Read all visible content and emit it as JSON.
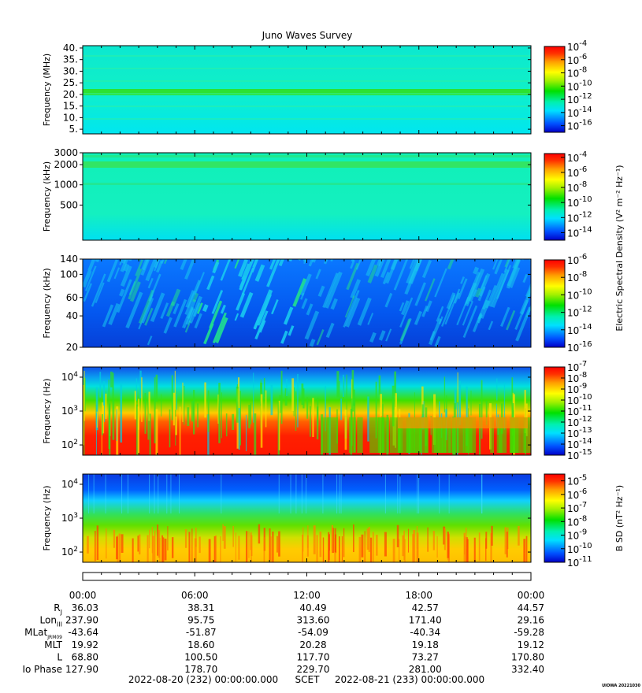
{
  "title": "Juno Waves Survey",
  "footer": {
    "start": "2022-08-20 (232) 00:00:00.000",
    "scet": "SCET",
    "end": "2022-08-21 (233) 00:00:00.000",
    "credit": "UIOWA 20221030"
  },
  "colorbar_labels": {
    "e_density": "Electric Spectral Density (V² m⁻² Hz⁻¹)",
    "b_density": "B SD (nT² Hz⁻¹)"
  },
  "ephemeris": {
    "times": [
      "00:00",
      "06:00",
      "12:00",
      "18:00",
      "00:00"
    ],
    "rows": [
      {
        "label": "R",
        "sub": "J",
        "values": [
          "36.03",
          "38.31",
          "40.49",
          "42.57",
          "44.57"
        ]
      },
      {
        "label": "Lon",
        "sub": "III",
        "values": [
          "237.90",
          "95.75",
          "313.60",
          "171.40",
          "29.16"
        ]
      },
      {
        "label": "MLat",
        "sub": "JRM09",
        "values": [
          "-43.64",
          "-51.87",
          "-54.09",
          "-40.34",
          "-59.28"
        ]
      },
      {
        "label": "MLT",
        "sub": "",
        "values": [
          "19.92",
          "18.60",
          "20.28",
          "19.18",
          "19.12"
        ]
      },
      {
        "label": "L",
        "sub": "",
        "values": [
          "68.80",
          "100.50",
          "117.70",
          "73.27",
          "170.80"
        ]
      },
      {
        "label": "Io Phase",
        "sub": "",
        "values": [
          "127.90",
          "178.70",
          "229.70",
          "281.00",
          "332.40"
        ]
      }
    ]
  },
  "chart_data": [
    {
      "type": "heatmap",
      "name": "hfwbr-high",
      "ylabel": "Frequency (MHz)",
      "yscale": "linear",
      "ytick_labels": [
        "40.",
        "35.",
        "30.",
        "25.",
        "20.",
        "15.",
        "10.",
        "5."
      ],
      "ytick_values": [
        40,
        35,
        30,
        25,
        20,
        15,
        10,
        5
      ],
      "ylim": [
        3,
        41
      ],
      "xlim": [
        "2022-08-20T00:00",
        "2022-08-21T00:00"
      ],
      "colorbar": {
        "scale": "log",
        "range_exp": [
          -17,
          -4
        ],
        "tick_labels": [
          "10-4",
          "10-6",
          "10-8",
          "10-10",
          "10-12",
          "10-14",
          "10-16"
        ],
        "tick_exps": [
          -4,
          -6,
          -8,
          -10,
          -12,
          -14,
          -16
        ]
      }
    },
    {
      "type": "heatmap",
      "name": "hfwbr-low",
      "ylabel": "Frequency (kHz)",
      "yscale": "log",
      "ytick_labels": [
        "3000",
        "2000",
        "1000",
        "500"
      ],
      "ytick_values": [
        3000,
        2000,
        1000,
        500
      ],
      "ylim": [
        150,
        3000
      ],
      "xlim": [
        "2022-08-20T00:00",
        "2022-08-21T00:00"
      ],
      "colorbar": {
        "scale": "log",
        "range_exp": [
          -15,
          -3.5
        ],
        "tick_labels": [
          "10-4",
          "10-6",
          "10-8",
          "10-10",
          "10-12",
          "10-14"
        ],
        "tick_exps": [
          -4,
          -6,
          -8,
          -10,
          -12,
          -14
        ]
      }
    },
    {
      "type": "heatmap",
      "name": "lfr-high",
      "ylabel": "Frequency (kHz)",
      "yscale": "log",
      "ytick_labels": [
        "140",
        "100",
        "60",
        "40",
        "20"
      ],
      "ytick_values": [
        140,
        100,
        60,
        40,
        20
      ],
      "ylim": [
        20,
        140
      ],
      "xlim": [
        "2022-08-20T00:00",
        "2022-08-21T00:00"
      ],
      "colorbar": {
        "scale": "log",
        "range_exp": [
          -16,
          -6
        ],
        "tick_labels": [
          "10-6",
          "10-8",
          "10-10",
          "10-12",
          "10-14",
          "10-16"
        ],
        "tick_exps": [
          -6,
          -8,
          -10,
          -12,
          -14,
          -16
        ]
      }
    },
    {
      "type": "heatmap",
      "name": "lfr-low-e",
      "ylabel": "Frequency (Hz)",
      "yscale": "log",
      "ytick_labels": [
        "10^4",
        "10^3",
        "10^2"
      ],
      "ytick_values": [
        10000,
        1000,
        100
      ],
      "ylim": [
        50,
        20000
      ],
      "xlim": [
        "2022-08-20T00:00",
        "2022-08-21T00:00"
      ],
      "colorbar": {
        "scale": "log",
        "range_exp": [
          -15,
          -7
        ],
        "tick_labels": [
          "10-7",
          "10-8",
          "10-9",
          "10-10",
          "10-11",
          "10-12",
          "10-13",
          "10-14",
          "10-15"
        ],
        "tick_exps": [
          -7,
          -8,
          -9,
          -10,
          -11,
          -12,
          -13,
          -14,
          -15
        ]
      }
    },
    {
      "type": "heatmap",
      "name": "lfr-low-b",
      "ylabel": "Frequency (Hz)",
      "yscale": "log",
      "ytick_labels": [
        "10^4",
        "10^3",
        "10^2"
      ],
      "ytick_values": [
        10000,
        1000,
        100
      ],
      "ylim": [
        50,
        20000
      ],
      "xlim": [
        "2022-08-20T00:00",
        "2022-08-21T00:00"
      ],
      "colorbar": {
        "scale": "log",
        "range_exp": [
          -11,
          -4.5
        ],
        "tick_labels": [
          "10-5",
          "10-6",
          "10-7",
          "10-8",
          "10-9",
          "10-10",
          "10-11"
        ],
        "tick_exps": [
          -5,
          -6,
          -7,
          -8,
          -9,
          -10,
          -11
        ]
      }
    }
  ]
}
